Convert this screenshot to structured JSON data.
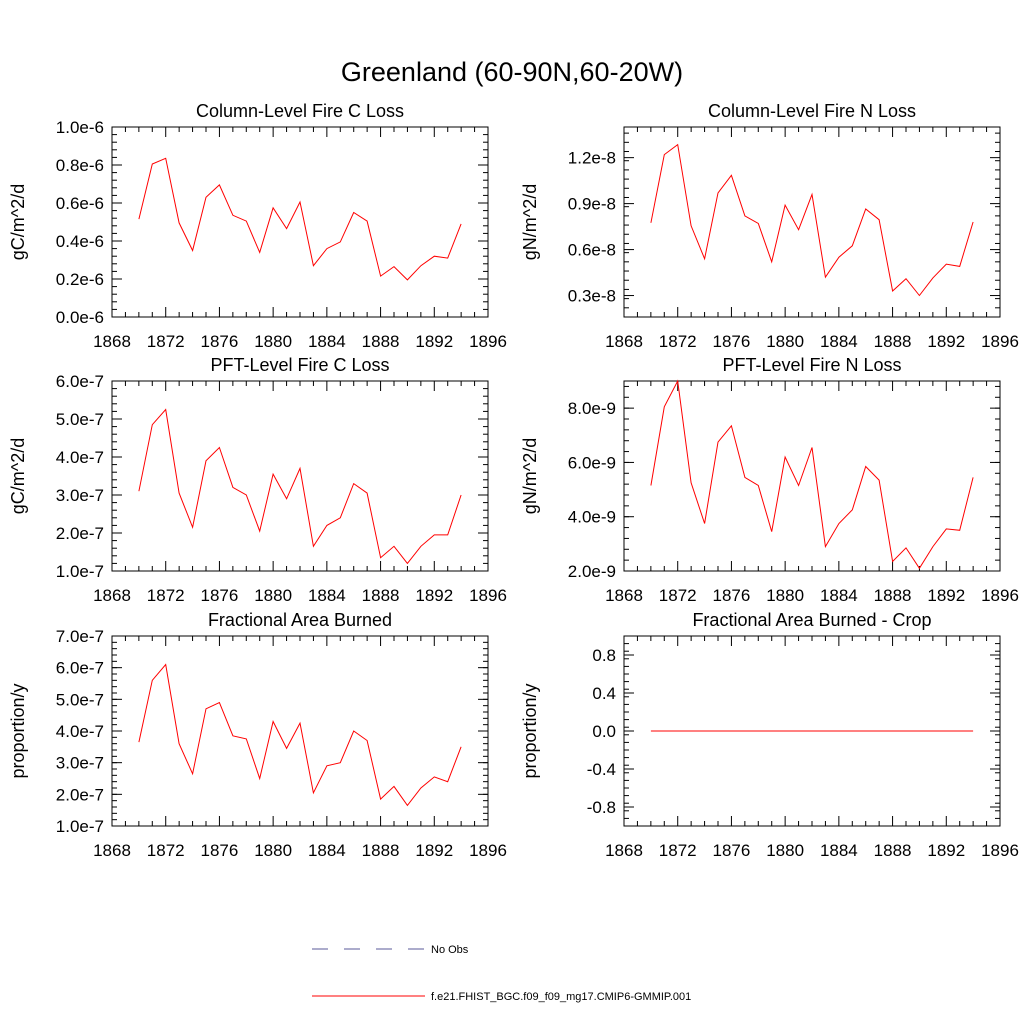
{
  "main_title": "Greenland (60-90N,60-20W)",
  "colors": {
    "model": "#ff0000",
    "obs": "#5a5a9a",
    "axis": "#000000"
  },
  "legend": {
    "obs_label": "No Obs",
    "model_label": "f.e21.FHIST_BGC.f09_f09_mg17.CMIP6-GMMIP.001"
  },
  "chart_data": [
    {
      "type": "line",
      "title": "Column-Level Fire C Loss",
      "xlabel": "",
      "ylabel": "gC/m^2/d",
      "xlim": [
        1868,
        1896
      ],
      "ylim": [
        0.0,
        1e-06
      ],
      "xticks": [
        1868,
        1872,
        1876,
        1880,
        1884,
        1888,
        1892,
        1896
      ],
      "xtick_labels": [
        "1868",
        "1872",
        "1876",
        "1880",
        "1884",
        "1888",
        "1892",
        "1896"
      ],
      "yticks": [
        0.0,
        2e-07,
        4e-07,
        6e-07,
        8e-07,
        1e-06
      ],
      "ytick_labels": [
        "0.0e-6",
        "0.2e-6",
        "0.4e-6",
        "0.6e-6",
        "0.8e-6",
        "1.0e-6"
      ],
      "series": [
        {
          "name": "f.e21.FHIST_BGC.f09_f09_mg17.CMIP6-GMMIP.001",
          "x": [
            1870,
            1871,
            1872,
            1873,
            1874,
            1875,
            1876,
            1877,
            1878,
            1879,
            1880,
            1881,
            1882,
            1883,
            1884,
            1885,
            1886,
            1887,
            1888,
            1889,
            1890,
            1891,
            1892,
            1893,
            1894
          ],
          "values": [
            5.15e-07,
            8.05e-07,
            8.35e-07,
            4.95e-07,
            3.5e-07,
            6.3e-07,
            6.95e-07,
            5.35e-07,
            5.05e-07,
            3.4e-07,
            5.75e-07,
            4.65e-07,
            6.05e-07,
            2.7e-07,
            3.6e-07,
            3.95e-07,
            5.5e-07,
            5.05e-07,
            2.15e-07,
            2.65e-07,
            1.95e-07,
            2.7e-07,
            3.2e-07,
            3.1e-07,
            4.9e-07
          ]
        }
      ]
    },
    {
      "type": "line",
      "title": "Column-Level Fire N Loss",
      "xlabel": "",
      "ylabel": "gN/m^2/d",
      "xlim": [
        1868,
        1896
      ],
      "ylim": [
        1.6e-09,
        1.4e-08
      ],
      "xticks": [
        1868,
        1872,
        1876,
        1880,
        1884,
        1888,
        1892,
        1896
      ],
      "xtick_labels": [
        "1868",
        "1872",
        "1876",
        "1880",
        "1884",
        "1888",
        "1892",
        "1896"
      ],
      "yticks": [
        3e-09,
        6e-09,
        9e-09,
        1.2e-08
      ],
      "ytick_labels": [
        "0.3e-8",
        "0.6e-8",
        "0.9e-8",
        "1.2e-8"
      ],
      "series": [
        {
          "name": "f.e21.FHIST_BGC.f09_f09_mg17.CMIP6-GMMIP.001",
          "x": [
            1870,
            1871,
            1872,
            1873,
            1874,
            1875,
            1876,
            1877,
            1878,
            1879,
            1880,
            1881,
            1882,
            1883,
            1884,
            1885,
            1886,
            1887,
            1888,
            1889,
            1890,
            1891,
            1892,
            1893,
            1894
          ],
          "values": [
            7.75e-09,
            1.22e-08,
            1.285e-08,
            7.55e-09,
            5.4e-09,
            9.7e-09,
            1.085e-08,
            8.2e-09,
            7.7e-09,
            5.2e-09,
            8.9e-09,
            7.3e-09,
            9.6e-09,
            4.2e-09,
            5.5e-09,
            6.25e-09,
            8.65e-09,
            7.95e-09,
            3.3e-09,
            4.1e-09,
            3e-09,
            4.15e-09,
            5.05e-09,
            4.9e-09,
            7.8e-09
          ]
        }
      ]
    },
    {
      "type": "line",
      "title": "PFT-Level Fire C Loss",
      "xlabel": "",
      "ylabel": "gC/m^2/d",
      "xlim": [
        1868,
        1896
      ],
      "ylim": [
        1e-07,
        6e-07
      ],
      "xticks": [
        1868,
        1872,
        1876,
        1880,
        1884,
        1888,
        1892,
        1896
      ],
      "xtick_labels": [
        "1868",
        "1872",
        "1876",
        "1880",
        "1884",
        "1888",
        "1892",
        "1896"
      ],
      "yticks": [
        1e-07,
        2e-07,
        3e-07,
        4e-07,
        5e-07,
        6e-07
      ],
      "ytick_labels": [
        "1.0e-7",
        "2.0e-7",
        "3.0e-7",
        "4.0e-7",
        "5.0e-7",
        "6.0e-7"
      ],
      "series": [
        {
          "name": "f.e21.FHIST_BGC.f09_f09_mg17.CMIP6-GMMIP.001",
          "x": [
            1870,
            1871,
            1872,
            1873,
            1874,
            1875,
            1876,
            1877,
            1878,
            1879,
            1880,
            1881,
            1882,
            1883,
            1884,
            1885,
            1886,
            1887,
            1888,
            1889,
            1890,
            1891,
            1892,
            1893,
            1894
          ],
          "values": [
            3.1e-07,
            4.85e-07,
            5.25e-07,
            3.05e-07,
            2.15e-07,
            3.9e-07,
            4.25e-07,
            3.2e-07,
            3e-07,
            2.05e-07,
            3.55e-07,
            2.9e-07,
            3.7e-07,
            1.65e-07,
            2.2e-07,
            2.4e-07,
            3.3e-07,
            3.05e-07,
            1.35e-07,
            1.65e-07,
            1.2e-07,
            1.65e-07,
            1.95e-07,
            1.95e-07,
            3e-07
          ]
        }
      ]
    },
    {
      "type": "line",
      "title": "PFT-Level Fire N Loss",
      "xlabel": "",
      "ylabel": "gN/m^2/d",
      "xlim": [
        1868,
        1896
      ],
      "ylim": [
        2e-09,
        9e-09
      ],
      "xticks": [
        1868,
        1872,
        1876,
        1880,
        1884,
        1888,
        1892,
        1896
      ],
      "xtick_labels": [
        "1868",
        "1872",
        "1876",
        "1880",
        "1884",
        "1888",
        "1892",
        "1896"
      ],
      "yticks": [
        2e-09,
        4e-09,
        6e-09,
        8e-09
      ],
      "ytick_labels": [
        "2.0e-9",
        "4.0e-9",
        "6.0e-9",
        "8.0e-9"
      ],
      "series": [
        {
          "name": "f.e21.FHIST_BGC.f09_f09_mg17.CMIP6-GMMIP.001",
          "x": [
            1870,
            1871,
            1872,
            1873,
            1874,
            1875,
            1876,
            1877,
            1878,
            1879,
            1880,
            1881,
            1882,
            1883,
            1884,
            1885,
            1886,
            1887,
            1888,
            1889,
            1890,
            1891,
            1892,
            1893,
            1894
          ],
          "values": [
            5.15e-09,
            8.05e-09,
            9e-09,
            5.25e-09,
            3.75e-09,
            6.75e-09,
            7.35e-09,
            5.45e-09,
            5.15e-09,
            3.45e-09,
            6.2e-09,
            5.15e-09,
            6.55e-09,
            2.9e-09,
            3.75e-09,
            4.25e-09,
            5.85e-09,
            5.35e-09,
            2.35e-09,
            2.85e-09,
            2.1e-09,
            2.9e-09,
            3.55e-09,
            3.5e-09,
            5.45e-09
          ]
        }
      ]
    },
    {
      "type": "line",
      "title": "Fractional Area Burned",
      "xlabel": "",
      "ylabel": "proportion/y",
      "xlim": [
        1868,
        1896
      ],
      "ylim": [
        1e-07,
        7e-07
      ],
      "xticks": [
        1868,
        1872,
        1876,
        1880,
        1884,
        1888,
        1892,
        1896
      ],
      "xtick_labels": [
        "1868",
        "1872",
        "1876",
        "1880",
        "1884",
        "1888",
        "1892",
        "1896"
      ],
      "yticks": [
        1e-07,
        2e-07,
        3e-07,
        4e-07,
        5e-07,
        6e-07,
        7e-07
      ],
      "ytick_labels": [
        "1.0e-7",
        "2.0e-7",
        "3.0e-7",
        "4.0e-7",
        "5.0e-7",
        "6.0e-7",
        "7.0e-7"
      ],
      "series": [
        {
          "name": "f.e21.FHIST_BGC.f09_f09_mg17.CMIP6-GMMIP.001",
          "x": [
            1870,
            1871,
            1872,
            1873,
            1874,
            1875,
            1876,
            1877,
            1878,
            1879,
            1880,
            1881,
            1882,
            1883,
            1884,
            1885,
            1886,
            1887,
            1888,
            1889,
            1890,
            1891,
            1892,
            1893,
            1894
          ],
          "values": [
            3.65e-07,
            5.6e-07,
            6.1e-07,
            3.6e-07,
            2.65e-07,
            4.7e-07,
            4.9e-07,
            3.85e-07,
            3.75e-07,
            2.5e-07,
            4.3e-07,
            3.45e-07,
            4.25e-07,
            2.05e-07,
            2.9e-07,
            3e-07,
            4e-07,
            3.7e-07,
            1.85e-07,
            2.25e-07,
            1.65e-07,
            2.2e-07,
            2.55e-07,
            2.4e-07,
            3.5e-07
          ]
        }
      ]
    },
    {
      "type": "line",
      "title": "Fractional Area Burned - Crop",
      "xlabel": "",
      "ylabel": "proportion/y",
      "xlim": [
        1868,
        1896
      ],
      "ylim": [
        -1.0,
        1.0
      ],
      "xticks": [
        1868,
        1872,
        1876,
        1880,
        1884,
        1888,
        1892,
        1896
      ],
      "xtick_labels": [
        "1868",
        "1872",
        "1876",
        "1880",
        "1884",
        "1888",
        "1892",
        "1896"
      ],
      "yticks": [
        -0.8,
        -0.4,
        0.0,
        0.4,
        0.8
      ],
      "ytick_labels": [
        "-0.8",
        "-0.4",
        "0.0",
        "0.4",
        "0.8"
      ],
      "series": [
        {
          "name": "f.e21.FHIST_BGC.f09_f09_mg17.CMIP6-GMMIP.001",
          "x": [
            1870,
            1871,
            1872,
            1873,
            1874,
            1875,
            1876,
            1877,
            1878,
            1879,
            1880,
            1881,
            1882,
            1883,
            1884,
            1885,
            1886,
            1887,
            1888,
            1889,
            1890,
            1891,
            1892,
            1893,
            1894
          ],
          "values": [
            0,
            0,
            0,
            0,
            0,
            0,
            0,
            0,
            0,
            0,
            0,
            0,
            0,
            0,
            0,
            0,
            0,
            0,
            0,
            0,
            0,
            0,
            0,
            0,
            0
          ]
        }
      ]
    }
  ]
}
